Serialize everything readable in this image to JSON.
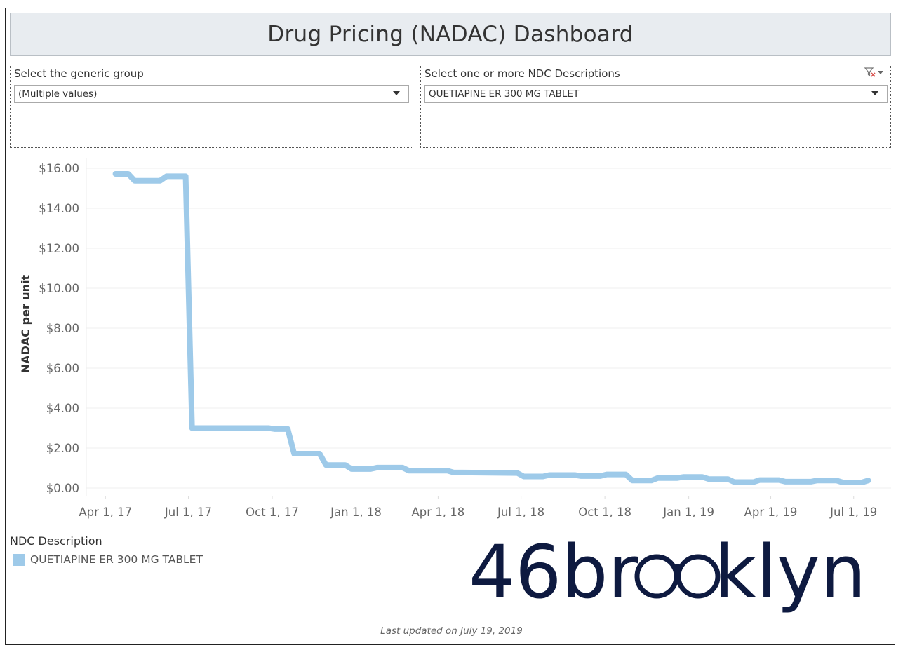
{
  "dashboard": {
    "title": "Drug Pricing (NADAC) Dashboard",
    "footer": "Last updated on July 19, 2019"
  },
  "filters": {
    "generic_group": {
      "label": "Select the generic group",
      "value": "(Multiple values)"
    },
    "ndc": {
      "label": "Select one or more NDC Descriptions",
      "value": "QUETIAPINE ER 300 MG TABLET"
    }
  },
  "legend": {
    "title": "NDC Description",
    "items": [
      {
        "label": "QUETIAPINE ER 300 MG TABLET",
        "color": "#9ecae9"
      }
    ]
  },
  "logo": {
    "text": "46brooklyn",
    "color": "#0e1a40"
  },
  "chart_data": {
    "type": "line",
    "title": "",
    "xlabel": "",
    "ylabel": "NADAC per unit",
    "ylim": [
      0,
      16
    ],
    "yticks": [
      "$0.00",
      "$2.00",
      "$4.00",
      "$6.00",
      "$8.00",
      "$10.00",
      "$12.00",
      "$14.00",
      "$16.00"
    ],
    "xlim": [
      "2017-03-11",
      "2019-08-11"
    ],
    "xticks": [
      {
        "date": "2017-04-01",
        "label": "Apr 1, 17"
      },
      {
        "date": "2017-07-01",
        "label": "Jul 1, 17"
      },
      {
        "date": "2017-10-01",
        "label": "Oct 1, 17"
      },
      {
        "date": "2018-01-01",
        "label": "Jan 1, 18"
      },
      {
        "date": "2018-04-01",
        "label": "Apr 1, 18"
      },
      {
        "date": "2018-07-01",
        "label": "Jul 1, 18"
      },
      {
        "date": "2018-10-01",
        "label": "Oct 1, 18"
      },
      {
        "date": "2019-01-01",
        "label": "Jan 1, 19"
      },
      {
        "date": "2019-04-01",
        "label": "Apr 1, 19"
      },
      {
        "date": "2019-07-01",
        "label": "Jul 1, 19"
      }
    ],
    "grid": true,
    "legend_position": "bottom-left",
    "series": [
      {
        "name": "QUETIAPINE ER 300 MG TABLET",
        "color": "#9ecae9",
        "points": [
          [
            "2017-04-12",
            15.72
          ],
          [
            "2017-04-26",
            15.72
          ],
          [
            "2017-05-03",
            15.38
          ],
          [
            "2017-05-31",
            15.38
          ],
          [
            "2017-06-07",
            15.6
          ],
          [
            "2017-06-28",
            15.6
          ],
          [
            "2017-07-05",
            3.0
          ],
          [
            "2017-09-27",
            3.0
          ],
          [
            "2017-10-04",
            2.95
          ],
          [
            "2017-10-18",
            2.95
          ],
          [
            "2017-10-25",
            1.72
          ],
          [
            "2017-11-22",
            1.72
          ],
          [
            "2017-11-29",
            1.15
          ],
          [
            "2017-12-20",
            1.15
          ],
          [
            "2017-12-27",
            0.95
          ],
          [
            "2018-01-17",
            0.95
          ],
          [
            "2018-01-24",
            1.02
          ],
          [
            "2018-02-21",
            1.02
          ],
          [
            "2018-02-28",
            0.87
          ],
          [
            "2018-04-11",
            0.87
          ],
          [
            "2018-04-18",
            0.78
          ],
          [
            "2018-06-27",
            0.75
          ],
          [
            "2018-07-04",
            0.58
          ],
          [
            "2018-07-25",
            0.58
          ],
          [
            "2018-08-01",
            0.65
          ],
          [
            "2018-08-29",
            0.65
          ],
          [
            "2018-09-05",
            0.6
          ],
          [
            "2018-09-26",
            0.6
          ],
          [
            "2018-10-03",
            0.68
          ],
          [
            "2018-10-24",
            0.68
          ],
          [
            "2018-10-31",
            0.38
          ],
          [
            "2018-11-21",
            0.38
          ],
          [
            "2018-11-28",
            0.5
          ],
          [
            "2018-12-19",
            0.5
          ],
          [
            "2018-12-26",
            0.55
          ],
          [
            "2019-01-16",
            0.55
          ],
          [
            "2019-01-23",
            0.45
          ],
          [
            "2019-02-13",
            0.45
          ],
          [
            "2019-02-20",
            0.3
          ],
          [
            "2019-03-13",
            0.3
          ],
          [
            "2019-03-20",
            0.4
          ],
          [
            "2019-04-10",
            0.4
          ],
          [
            "2019-04-17",
            0.32
          ],
          [
            "2019-05-15",
            0.32
          ],
          [
            "2019-05-22",
            0.38
          ],
          [
            "2019-06-12",
            0.38
          ],
          [
            "2019-06-19",
            0.28
          ],
          [
            "2019-07-10",
            0.28
          ],
          [
            "2019-07-17",
            0.38
          ]
        ]
      }
    ]
  }
}
